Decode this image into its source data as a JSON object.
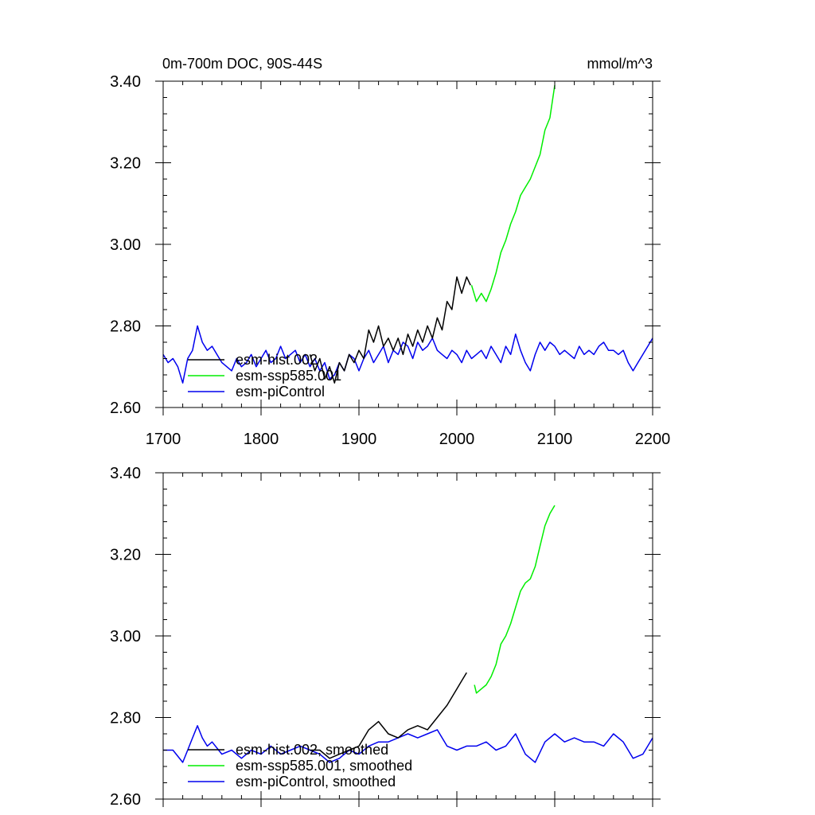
{
  "colors": {
    "hist": "#000000",
    "ssp": "#00ee00",
    "pi": "#0000ee"
  },
  "chart_data": [
    {
      "type": "line",
      "title": "0m-700m DOC, 90S-44S",
      "units": "mmol/m^3",
      "xlim": [
        1700,
        2200
      ],
      "ylim": [
        2.6,
        3.4
      ],
      "x_ticks": [
        "1700",
        "1800",
        "1900",
        "2000",
        "2100",
        "2200"
      ],
      "y_ticks": [
        "2.60",
        "2.80",
        "3.00",
        "3.20",
        "3.40"
      ],
      "grid": false,
      "legend_placement": "bottom-left",
      "series": [
        {
          "name": "esm-hist.002",
          "color": "#000000",
          "x": [
            1850,
            1855,
            1860,
            1865,
            1870,
            1875,
            1880,
            1885,
            1890,
            1895,
            1900,
            1905,
            1910,
            1915,
            1920,
            1925,
            1930,
            1935,
            1940,
            1945,
            1950,
            1955,
            1960,
            1965,
            1970,
            1975,
            1980,
            1985,
            1990,
            1995,
            2000,
            2005,
            2010,
            2014
          ],
          "y": [
            2.73,
            2.69,
            2.72,
            2.67,
            2.7,
            2.66,
            2.71,
            2.69,
            2.73,
            2.71,
            2.74,
            2.72,
            2.79,
            2.76,
            2.8,
            2.75,
            2.77,
            2.74,
            2.77,
            2.73,
            2.78,
            2.75,
            2.79,
            2.76,
            2.8,
            2.77,
            2.82,
            2.79,
            2.86,
            2.84,
            2.92,
            2.88,
            2.92,
            2.9
          ]
        },
        {
          "name": "esm-ssp585.001",
          "color": "#00ee00",
          "x": [
            2015,
            2020,
            2025,
            2030,
            2035,
            2040,
            2045,
            2050,
            2055,
            2060,
            2065,
            2070,
            2075,
            2080,
            2085,
            2090,
            2095,
            2100
          ],
          "y": [
            2.9,
            2.86,
            2.88,
            2.86,
            2.89,
            2.93,
            2.98,
            3.01,
            3.05,
            3.08,
            3.12,
            3.14,
            3.16,
            3.19,
            3.22,
            3.28,
            3.31,
            3.39
          ]
        },
        {
          "name": "esm-piControl",
          "color": "#0000ee",
          "x": [
            1700,
            1705,
            1710,
            1715,
            1720,
            1725,
            1730,
            1735,
            1740,
            1745,
            1750,
            1755,
            1760,
            1765,
            1770,
            1775,
            1780,
            1785,
            1790,
            1795,
            1800,
            1805,
            1810,
            1815,
            1820,
            1825,
            1830,
            1835,
            1840,
            1845,
            1850,
            1855,
            1860,
            1865,
            1870,
            1875,
            1880,
            1885,
            1890,
            1895,
            1900,
            1905,
            1910,
            1915,
            1920,
            1925,
            1930,
            1935,
            1940,
            1945,
            1950,
            1955,
            1960,
            1965,
            1970,
            1975,
            1980,
            1985,
            1990,
            1995,
            2000,
            2005,
            2010,
            2015,
            2020,
            2025,
            2030,
            2035,
            2040,
            2045,
            2050,
            2055,
            2060,
            2065,
            2070,
            2075,
            2080,
            2085,
            2090,
            2095,
            2100,
            2105,
            2110,
            2115,
            2120,
            2125,
            2130,
            2135,
            2140,
            2145,
            2150,
            2155,
            2160,
            2165,
            2170,
            2175,
            2180,
            2185,
            2190,
            2195,
            2200
          ],
          "y": [
            2.73,
            2.71,
            2.72,
            2.7,
            2.66,
            2.72,
            2.74,
            2.8,
            2.76,
            2.74,
            2.75,
            2.73,
            2.71,
            2.7,
            2.69,
            2.72,
            2.7,
            2.71,
            2.73,
            2.7,
            2.72,
            2.74,
            2.71,
            2.72,
            2.75,
            2.72,
            2.73,
            2.74,
            2.71,
            2.73,
            2.7,
            2.72,
            2.69,
            2.71,
            2.67,
            2.68,
            2.71,
            2.69,
            2.73,
            2.72,
            2.69,
            2.72,
            2.74,
            2.71,
            2.73,
            2.75,
            2.71,
            2.74,
            2.73,
            2.76,
            2.75,
            2.72,
            2.76,
            2.74,
            2.75,
            2.77,
            2.74,
            2.73,
            2.72,
            2.74,
            2.73,
            2.71,
            2.74,
            2.72,
            2.73,
            2.74,
            2.72,
            2.75,
            2.73,
            2.71,
            2.75,
            2.73,
            2.78,
            2.74,
            2.71,
            2.69,
            2.73,
            2.76,
            2.74,
            2.76,
            2.75,
            2.73,
            2.74,
            2.73,
            2.72,
            2.75,
            2.73,
            2.74,
            2.73,
            2.75,
            2.76,
            2.74,
            2.74,
            2.73,
            2.74,
            2.71,
            2.69,
            2.71,
            2.73,
            2.75,
            2.77
          ]
        }
      ]
    },
    {
      "type": "line",
      "xlim": [
        1700,
        2200
      ],
      "ylim": [
        2.6,
        3.4
      ],
      "y_ticks": [
        "2.60",
        "2.80",
        "3.00",
        "3.20",
        "3.40"
      ],
      "grid": false,
      "legend_placement": "bottom-left",
      "series": [
        {
          "name": "esm-hist.002, smoothed",
          "color": "#000000",
          "x": [
            1850,
            1860,
            1870,
            1880,
            1890,
            1900,
            1910,
            1915,
            1920,
            1930,
            1940,
            1950,
            1960,
            1970,
            1980,
            1990,
            2000,
            2005,
            2010
          ],
          "y": [
            2.72,
            2.72,
            2.7,
            2.71,
            2.72,
            2.73,
            2.77,
            2.78,
            2.79,
            2.76,
            2.75,
            2.77,
            2.78,
            2.77,
            2.8,
            2.83,
            2.87,
            2.89,
            2.91
          ]
        },
        {
          "name": "esm-ssp585.001, smoothed",
          "color": "#00ee00",
          "x": [
            2018,
            2020,
            2025,
            2030,
            2035,
            2040,
            2045,
            2050,
            2055,
            2060,
            2065,
            2070,
            2075,
            2080,
            2085,
            2090,
            2095,
            2100
          ],
          "y": [
            2.88,
            2.86,
            2.87,
            2.88,
            2.9,
            2.93,
            2.98,
            3.0,
            3.03,
            3.07,
            3.11,
            3.13,
            3.14,
            3.17,
            3.22,
            3.27,
            3.3,
            3.32
          ]
        },
        {
          "name": "esm-piControl, smoothed",
          "color": "#0000ee",
          "x": [
            1700,
            1710,
            1720,
            1725,
            1730,
            1735,
            1740,
            1745,
            1750,
            1760,
            1770,
            1780,
            1790,
            1800,
            1810,
            1820,
            1830,
            1840,
            1850,
            1860,
            1870,
            1880,
            1890,
            1900,
            1910,
            1920,
            1930,
            1940,
            1950,
            1960,
            1970,
            1980,
            1990,
            2000,
            2010,
            2020,
            2030,
            2040,
            2050,
            2060,
            2070,
            2080,
            2090,
            2100,
            2110,
            2120,
            2130,
            2140,
            2150,
            2160,
            2170,
            2180,
            2190,
            2200
          ],
          "y": [
            2.72,
            2.72,
            2.69,
            2.72,
            2.75,
            2.78,
            2.75,
            2.73,
            2.74,
            2.71,
            2.72,
            2.7,
            2.72,
            2.71,
            2.73,
            2.71,
            2.72,
            2.73,
            2.72,
            2.71,
            2.69,
            2.7,
            2.72,
            2.71,
            2.73,
            2.74,
            2.74,
            2.75,
            2.76,
            2.75,
            2.76,
            2.77,
            2.73,
            2.72,
            2.73,
            2.73,
            2.74,
            2.72,
            2.73,
            2.76,
            2.71,
            2.69,
            2.74,
            2.76,
            2.74,
            2.75,
            2.74,
            2.74,
            2.73,
            2.76,
            2.74,
            2.7,
            2.71,
            2.75
          ]
        }
      ]
    }
  ]
}
